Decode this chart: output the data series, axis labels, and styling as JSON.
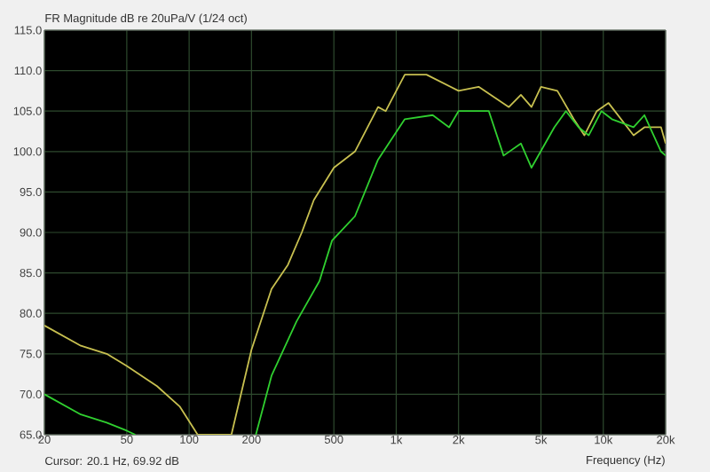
{
  "chart_data": {
    "type": "line",
    "title": "FR Magnitude dB re 20uPa/V (1/24 oct)",
    "xlabel": "Frequency (Hz)",
    "annotations": [
      "Cursor: 20.1 Hz, 69.92 dB"
    ],
    "log": "x",
    "grid": true,
    "xlim": [
      20,
      20000
    ],
    "ylim": [
      65,
      115
    ],
    "xticks": [
      20,
      50,
      100,
      200,
      500,
      {
        "value": 1000,
        "label": "1k"
      },
      {
        "value": 2000,
        "label": "2k"
      },
      {
        "value": 5000,
        "label": "5k"
      },
      {
        "value": 10000,
        "label": "10k"
      },
      {
        "value": 20000,
        "label": "20k"
      }
    ],
    "yticks": [
      {
        "value": 65,
        "label": "65.0"
      },
      {
        "value": 70,
        "label": "70.0"
      },
      {
        "value": 75,
        "label": "75.0"
      },
      {
        "value": 80,
        "label": "80.0"
      },
      {
        "value": 85,
        "label": "85.0"
      },
      {
        "value": 90,
        "label": "90.0"
      },
      {
        "value": 95,
        "label": "95.0"
      },
      {
        "value": 100,
        "label": "100.0"
      },
      {
        "value": 105,
        "label": "105.0"
      },
      {
        "value": 110,
        "label": "110.0"
      },
      {
        "value": 115,
        "label": "115.0"
      }
    ],
    "series": [
      {
        "color": "#c8c050",
        "x": [
          20,
          30,
          40,
          50,
          70,
          90,
          110,
          140,
          160,
          200,
          250,
          300,
          350,
          400,
          500,
          632,
          817,
          890,
          1100,
          1400,
          2000,
          2500,
          3500,
          4000,
          4500,
          5000,
          6000,
          7200,
          8100,
          9300,
          10600,
          14000,
          15800,
          19000,
          20000
        ],
        "values": [
          78.5,
          76,
          75,
          73.5,
          71,
          68.5,
          65,
          65,
          65,
          75.5,
          83,
          86,
          90,
          94,
          98,
          100,
          105.5,
          105,
          109.5,
          109.5,
          107.5,
          108,
          105.5,
          107,
          105.5,
          108,
          107.5,
          104,
          102,
          105,
          106,
          102,
          103,
          103,
          101
        ]
      },
      {
        "color": "#30d030",
        "x": [
          20,
          30,
          40,
          50,
          55,
          100,
          210,
          250,
          330,
          426,
          490,
          632,
          817,
          1100,
          1500,
          1800,
          2000,
          2300,
          2800,
          3300,
          4000,
          4500,
          5800,
          6600,
          7600,
          8500,
          9800,
          11000,
          14000,
          15800,
          19000,
          20000
        ],
        "values": [
          70,
          67.5,
          66.5,
          65.5,
          65,
          null,
          65,
          72.3,
          79,
          84,
          89,
          92,
          99,
          104,
          104.5,
          103,
          105,
          105,
          105,
          99.5,
          101,
          98,
          103,
          105,
          103,
          102,
          105,
          104,
          103,
          104.5,
          100,
          99.5
        ]
      }
    ]
  }
}
